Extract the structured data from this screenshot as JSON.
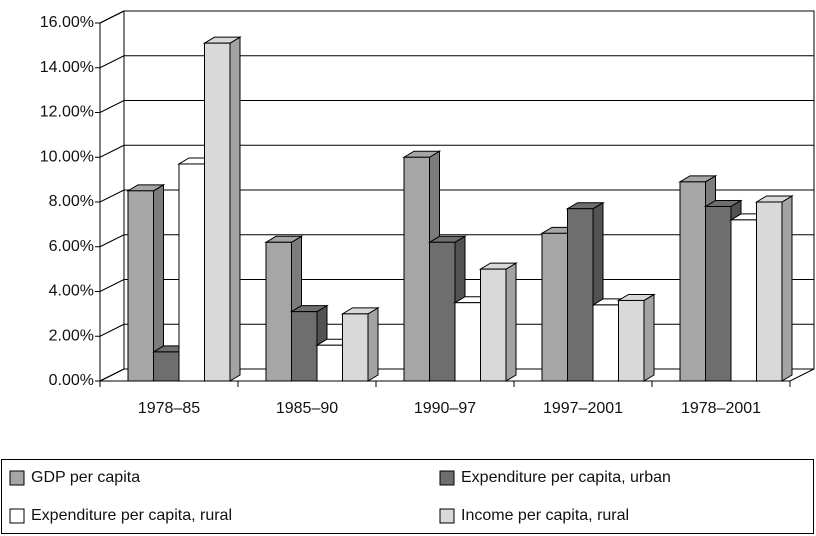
{
  "chart_data": {
    "type": "bar3d",
    "categories": [
      "1978–85",
      "1985–90",
      "1990–97",
      "1997–2001",
      "1978–2001"
    ],
    "series": [
      {
        "name": "GDP per capita",
        "color": "#a6a6a6",
        "values": [
          8.5,
          6.2,
          10.0,
          6.6,
          8.9
        ]
      },
      {
        "name": "Expenditure per capita, urban",
        "color": "#6e6e6e",
        "values": [
          1.3,
          3.1,
          6.2,
          7.7,
          7.8
        ]
      },
      {
        "name": "Expenditure per capita, rural",
        "color": "#ffffff",
        "values": [
          9.7,
          1.6,
          3.5,
          3.4,
          7.2
        ]
      },
      {
        "name": "Income per capita, rural",
        "color": "#d9d9d9",
        "values": [
          15.1,
          3.0,
          5.0,
          3.6,
          8.0
        ]
      }
    ],
    "ylim": [
      0,
      16
    ],
    "yticks": [
      {
        "value": 0,
        "label": "0.00%"
      },
      {
        "value": 2,
        "label": "2.00%"
      },
      {
        "value": 4,
        "label": "4.00%"
      },
      {
        "value": 6,
        "label": "6.00%"
      },
      {
        "value": 8,
        "label": "8.00%"
      },
      {
        "value": 10,
        "label": "10.00%"
      },
      {
        "value": 12,
        "label": "12.00%"
      },
      {
        "value": 14,
        "label": "14.00%"
      },
      {
        "value": 16,
        "label": "16.00%"
      }
    ],
    "grid": true,
    "legend": "bottom"
  }
}
